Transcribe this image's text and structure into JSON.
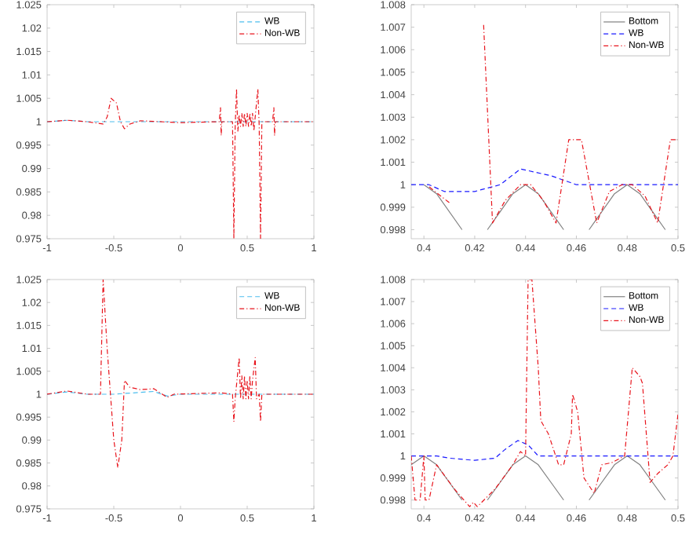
{
  "chart_data": [
    {
      "type": "line",
      "xlim": [
        -1,
        1
      ],
      "ylim": [
        0.975,
        1.025
      ],
      "xticks": [
        -1,
        -0.5,
        0,
        0.5,
        1
      ],
      "yticks": [
        0.975,
        0.98,
        0.985,
        0.99,
        0.995,
        1,
        1.005,
        1.01,
        1.015,
        1.02,
        1.025
      ],
      "grid": false,
      "legend": "top right",
      "series": [
        {
          "name": "WB",
          "color": "#4dbeee",
          "line_style": "dashed",
          "x": [
            -1,
            -0.85,
            -0.7,
            -0.5,
            0,
            0.5,
            1
          ],
          "values": [
            1,
            1.0003,
            1,
            1,
            1,
            1,
            1
          ]
        },
        {
          "name": "Non-WB",
          "color": "#e8141c",
          "line_style": "dashdot",
          "x": [
            -1,
            -0.85,
            -0.7,
            -0.58,
            -0.55,
            -0.52,
            -0.48,
            -0.45,
            -0.42,
            -0.38,
            -0.3,
            0,
            0.29,
            0.3,
            0.305,
            0.31,
            0.39,
            0.4,
            0.41,
            0.42,
            0.43,
            0.44,
            0.45,
            0.46,
            0.47,
            0.48,
            0.49,
            0.5,
            0.51,
            0.52,
            0.53,
            0.54,
            0.55,
            0.58,
            0.59,
            0.6,
            0.61,
            0.69,
            0.7,
            0.705,
            0.71,
            1
          ],
          "values": [
            1,
            1.0003,
            1,
            0.9995,
            1.001,
            1.005,
            1.004,
            1,
            0.9985,
            0.9995,
            1.0002,
            0.9998,
            1,
            1.003,
            0.997,
            1,
            1,
            0.975,
            0.999,
            1.007,
            0.998,
            1.0015,
            0.999,
            1.0018,
            0.999,
            1.0018,
            0.999,
            1.0018,
            0.999,
            1.0018,
            0.999,
            1.0018,
            0.998,
            1.007,
            0.999,
            0.975,
            1,
            1,
            1.003,
            0.997,
            1,
            1
          ]
        }
      ]
    },
    {
      "type": "line",
      "xlim": [
        0.395,
        0.5
      ],
      "ylim": [
        0.9976,
        1.008
      ],
      "xticks": [
        0.4,
        0.42,
        0.44,
        0.46,
        0.48,
        0.5
      ],
      "yticks": [
        0.998,
        0.999,
        1,
        1.001,
        1.002,
        1.003,
        1.004,
        1.005,
        1.006,
        1.007,
        1.008
      ],
      "grid": false,
      "legend": "top right",
      "series": [
        {
          "name": "Bottom",
          "color": "#808080",
          "line_style": "solid",
          "x": [
            0.4,
            0.405,
            0.41,
            0.415,
            0.42,
            0.425,
            0.43,
            0.435,
            0.44,
            0.445,
            0.45,
            0.455,
            0.46,
            0.465,
            0.47,
            0.475,
            0.48,
            0.485,
            0.49,
            0.495
          ],
          "values": [
            1,
            0.9996,
            0.9988,
            0.998,
            null,
            0.998,
            0.9988,
            0.9996,
            1,
            0.9996,
            0.9988,
            0.998,
            null,
            0.998,
            0.9988,
            0.9996,
            1,
            0.9996,
            0.9988,
            0.998
          ]
        },
        {
          "name": "WB",
          "color": "#1a1aff",
          "line_style": "dashed",
          "x": [
            0.395,
            0.402,
            0.408,
            0.42,
            0.43,
            0.438,
            0.45,
            0.46,
            0.48,
            0.5
          ],
          "values": [
            1,
            1,
            0.9997,
            0.9997,
            1,
            1.0007,
            1.0004,
            1,
            1,
            1
          ]
        },
        {
          "name": "Non-WB",
          "color": "#e8141c",
          "line_style": "dashdot",
          "x": [
            0.4021,
            0.41,
            0.418,
            0.4235,
            0.427,
            0.432,
            0.438,
            0.442,
            0.447,
            0.452,
            0.457,
            0.462,
            0.468,
            0.473,
            0.478,
            0.482,
            0.487,
            0.492,
            0.497,
            0.5
          ],
          "values": [
            0.9999,
            0.9992,
            null,
            1.0071,
            0.9983,
            0.9993,
            1,
            1,
            0.9993,
            0.9983,
            1.002,
            1.002,
            0.9983,
            0.9997,
            1,
            1,
            0.9995,
            0.9983,
            1.002,
            1.002
          ]
        }
      ]
    },
    {
      "type": "line",
      "xlim": [
        -1,
        1
      ],
      "ylim": [
        0.975,
        1.025
      ],
      "xticks": [
        -1,
        -0.5,
        0,
        0.5,
        1
      ],
      "yticks": [
        0.975,
        0.98,
        0.985,
        0.99,
        0.995,
        1,
        1.005,
        1.01,
        1.015,
        1.02,
        1.025
      ],
      "grid": false,
      "legend": "top right",
      "series": [
        {
          "name": "WB",
          "color": "#4dbeee",
          "line_style": "dashed",
          "x": [
            -1,
            -0.85,
            -0.7,
            -0.5,
            -0.3,
            -0.2,
            -0.1,
            0,
            0.5,
            1
          ],
          "values": [
            1,
            1.0005,
            1,
            1,
            1.0004,
            1.0006,
            0.9996,
            1,
            1,
            1
          ]
        },
        {
          "name": "Non-WB",
          "color": "#e8141c",
          "line_style": "dashdot",
          "x": [
            -1,
            -0.85,
            -0.7,
            -0.6,
            -0.58,
            -0.55,
            -0.5,
            -0.47,
            -0.44,
            -0.42,
            -0.38,
            -0.3,
            -0.2,
            -0.1,
            -0.05,
            0.3,
            0.39,
            0.4,
            0.41,
            0.44,
            0.45,
            0.46,
            0.47,
            0.48,
            0.49,
            0.5,
            0.51,
            0.52,
            0.53,
            0.54,
            0.56,
            0.57,
            0.59,
            0.6,
            0.61,
            0.7,
            1
          ],
          "values": [
            1,
            1.0007,
            1,
            1,
            1.025,
            1.01,
            0.99,
            0.984,
            0.99,
            1.003,
            1.0015,
            1.001,
            1.0012,
            0.9993,
            1,
            1.0003,
            1,
            0.994,
            0.999,
            1.008,
            0.999,
            1.004,
            0.999,
            1.004,
            0.999,
            1.003,
            0.999,
            1.004,
            0.999,
            1.003,
            1.008,
            0.999,
            1,
            0.994,
            1,
            1,
            1
          ]
        }
      ]
    },
    {
      "type": "line",
      "xlim": [
        0.395,
        0.5
      ],
      "ylim": [
        0.9976,
        1.008
      ],
      "xticks": [
        0.4,
        0.42,
        0.44,
        0.46,
        0.48,
        0.5
      ],
      "yticks": [
        0.998,
        0.999,
        1,
        1.001,
        1.002,
        1.003,
        1.004,
        1.005,
        1.006,
        1.007,
        1.008
      ],
      "grid": false,
      "legend": "top right",
      "series": [
        {
          "name": "Bottom",
          "color": "#808080",
          "line_style": "solid",
          "x": [
            0.395,
            0.4,
            0.405,
            0.41,
            0.415,
            0.42,
            0.425,
            0.43,
            0.435,
            0.44,
            0.445,
            0.45,
            0.455,
            0.46,
            0.465,
            0.47,
            0.475,
            0.48,
            0.485,
            0.49,
            0.495
          ],
          "values": [
            0.9996,
            1,
            0.9996,
            0.9988,
            0.998,
            null,
            0.998,
            0.9988,
            0.9996,
            1,
            0.9996,
            0.9988,
            0.998,
            null,
            0.998,
            0.9988,
            0.9996,
            1,
            0.9996,
            0.9988,
            0.998
          ]
        },
        {
          "name": "WB",
          "color": "#1a1aff",
          "line_style": "dashed",
          "x": [
            0.395,
            0.405,
            0.41,
            0.42,
            0.428,
            0.432,
            0.437,
            0.441,
            0.445,
            0.46,
            0.48,
            0.5
          ],
          "values": [
            1,
            1,
            0.9999,
            0.9998,
            0.9999,
            1.0003,
            1.0007,
            1.0005,
            1,
            1,
            1,
            1
          ]
        },
        {
          "name": "Non-WB",
          "color": "#e8141c",
          "line_style": "dashdot",
          "x": [
            0.395,
            0.3965,
            0.3985,
            0.4,
            0.4005,
            0.402,
            0.405,
            0.412,
            0.418,
            0.4195,
            0.421,
            0.428,
            0.435,
            0.438,
            0.44,
            0.441,
            0.4425,
            0.445,
            0.446,
            0.449,
            0.453,
            0.455,
            0.458,
            0.4585,
            0.4605,
            0.463,
            0.467,
            0.47,
            0.474,
            0.479,
            0.482,
            0.485,
            0.486,
            0.489,
            0.492,
            0.496,
            0.498,
            0.5
          ],
          "values": [
            1,
            0.998,
            0.998,
            1,
            0.998,
            0.998,
            0.9996,
            0.9985,
            0.9977,
            0.9979,
            0.9977,
            0.9985,
            0.9996,
            1.0002,
            1,
            1.008,
            1.008,
            1.004,
            1.0016,
            1.001,
            0.9996,
            0.9996,
            1.001,
            1.0028,
            1.002,
            0.999,
            0.9983,
            0.9996,
            0.9997,
            1,
            1.004,
            1.0036,
            1.0033,
            0.9988,
            0.9992,
            0.9996,
            1,
            1.0019
          ]
        }
      ]
    }
  ]
}
